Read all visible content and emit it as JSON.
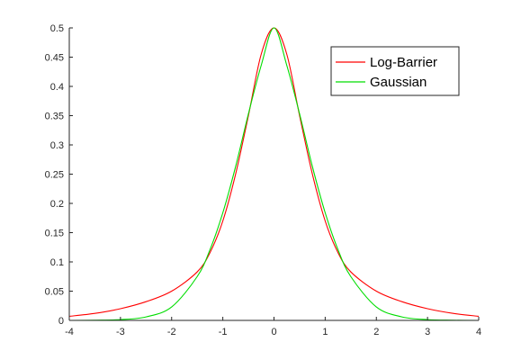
{
  "chart_data": {
    "type": "line",
    "title": "",
    "xlabel": "",
    "ylabel": "",
    "xlim": [
      -4,
      4
    ],
    "ylim": [
      0,
      0.5
    ],
    "x_ticks": [
      -4,
      -3,
      -2,
      -1,
      0,
      1,
      2,
      3,
      4
    ],
    "y_ticks": [
      0,
      0.05,
      0.1,
      0.15,
      0.2,
      0.25,
      0.3,
      0.35,
      0.4,
      0.45,
      0.5
    ],
    "x_tick_labels": [
      "-4",
      "-3",
      "-2",
      "-1",
      "0",
      "1",
      "2",
      "3",
      "4"
    ],
    "y_tick_labels": [
      "0",
      "0.05",
      "0.1",
      "0.15",
      "0.2",
      "0.25",
      "0.3",
      "0.35",
      "0.4",
      "0.45",
      "0.5"
    ],
    "grid": false,
    "legend_position": "top-right",
    "series": [
      {
        "name": "Log-Barrier",
        "color": "#ff0000",
        "x": [
          -4,
          -3.5,
          -3,
          -2.5,
          -2,
          -1.5,
          -1.25,
          -1,
          -0.75,
          -0.5,
          -0.25,
          0,
          0.25,
          0.5,
          0.75,
          1,
          1.25,
          1.5,
          2,
          2.5,
          3,
          3.5,
          4
        ],
        "y": [
          0.007,
          0.012,
          0.02,
          0.032,
          0.05,
          0.083,
          0.116,
          0.17,
          0.25,
          0.35,
          0.455,
          0.5,
          0.455,
          0.35,
          0.25,
          0.17,
          0.116,
          0.083,
          0.05,
          0.032,
          0.02,
          0.012,
          0.007
        ]
      },
      {
        "name": "Gaussian",
        "color": "#00dd00",
        "x": [
          -4,
          -3.5,
          -3,
          -2.5,
          -2,
          -1.5,
          -1.25,
          -1,
          -0.75,
          -0.5,
          -0.25,
          0,
          0.25,
          0.5,
          0.75,
          1,
          1.25,
          1.5,
          2,
          2.5,
          3,
          3.5,
          4
        ],
        "y": [
          0.0,
          0.0003,
          0.0013,
          0.006,
          0.023,
          0.075,
          0.121,
          0.184,
          0.263,
          0.353,
          0.436,
          0.5,
          0.436,
          0.353,
          0.263,
          0.184,
          0.121,
          0.075,
          0.023,
          0.006,
          0.0013,
          0.0003,
          0.0
        ]
      }
    ]
  }
}
